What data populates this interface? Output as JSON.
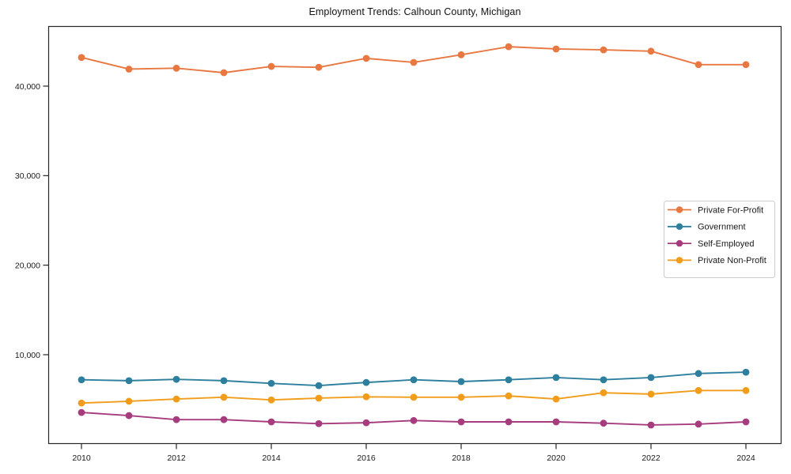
{
  "figure": {
    "background": "#ffffff",
    "frame_color": "#262626",
    "tick_label_color": "#1a1a1a"
  },
  "chart_data": {
    "type": "line",
    "title": "Employment Trends: Calhoun County, Michigan",
    "xlabel": "",
    "ylabel": "",
    "x": [
      2010,
      2011,
      2012,
      2013,
      2014,
      2015,
      2016,
      2017,
      2018,
      2019,
      2020,
      2021,
      2022,
      2023,
      2024
    ],
    "series": [
      {
        "name": "Private For-Profit",
        "color": "#e87741",
        "values": [
          43200,
          41900,
          42000,
          41500,
          42200,
          42100,
          43100,
          42650,
          43500,
          44400,
          44150,
          44050,
          43900,
          42400,
          42400
        ]
      },
      {
        "name": "Government",
        "color": "#2d7f9d",
        "values": [
          7200,
          7100,
          7250,
          7100,
          6800,
          6550,
          6900,
          7200,
          7000,
          7200,
          7450,
          7200,
          7450,
          7900,
          8050
        ]
      },
      {
        "name": "Self-Employed",
        "color": "#a63c7e",
        "values": [
          3550,
          3200,
          2750,
          2750,
          2500,
          2300,
          2400,
          2650,
          2500,
          2500,
          2500,
          2350,
          2150,
          2250,
          2500
        ]
      },
      {
        "name": "Private Non-Profit",
        "color": "#f29c1b",
        "values": [
          4600,
          4800,
          5050,
          5250,
          4950,
          5150,
          5300,
          5250,
          5250,
          5400,
          5050,
          5750,
          5600,
          6000,
          6000
        ]
      }
    ],
    "xticks": [
      2010,
      2012,
      2014,
      2016,
      2018,
      2020,
      2022,
      2024
    ],
    "xtick_labels": [
      "2010",
      "2012",
      "2014",
      "2016",
      "2018",
      "2020",
      "2022",
      "2024"
    ],
    "yticks": [
      10000,
      20000,
      30000,
      40000
    ],
    "ytick_labels": [
      "10,000",
      "20,000",
      "30,000",
      "40,000"
    ],
    "xlim": [
      2009.3,
      2024.75
    ],
    "ylim": [
      0,
      46700
    ],
    "grid": false,
    "marker": "circle",
    "legend_position": "center-right"
  }
}
